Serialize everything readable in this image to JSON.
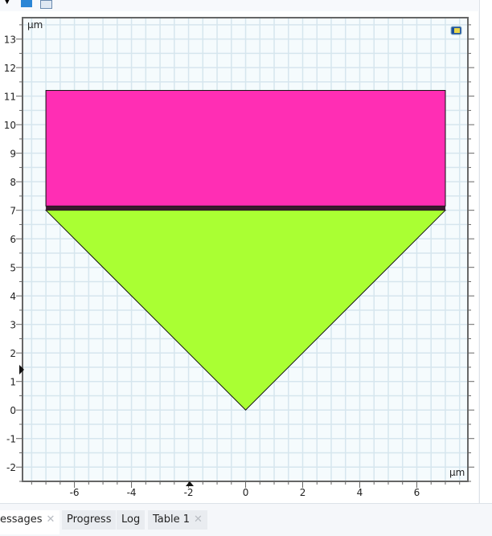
{
  "plot": {
    "unit_x": "µm",
    "unit_y": "µm",
    "x_ticks": [
      -6,
      -4,
      -2,
      0,
      2,
      4,
      6
    ],
    "y_ticks": [
      -2,
      -1,
      0,
      1,
      2,
      3,
      4,
      5,
      6,
      7,
      8,
      9,
      10,
      11,
      12,
      13
    ],
    "x_range": [
      -7.82,
      7.79
    ],
    "y_range": [
      -2.5,
      13.75
    ],
    "grid": true,
    "geometry": {
      "rectangle": {
        "x": [
          -7,
          7
        ],
        "y": [
          7.15,
          11.2
        ],
        "color": "#ff2eb4"
      },
      "interface_layer": {
        "x": [
          -7,
          7
        ],
        "y": [
          7.0,
          7.15
        ],
        "color": "#3a1a2e"
      },
      "triangle": {
        "points": [
          [
            -7,
            7
          ],
          [
            7,
            7
          ],
          [
            0,
            0
          ]
        ],
        "color": "#aaff33"
      }
    }
  },
  "tabs": [
    {
      "label": "essages",
      "closable": true
    },
    {
      "label": "Progress",
      "closable": false
    },
    {
      "label": "Log",
      "closable": false
    },
    {
      "label": "Table 1",
      "closable": true
    }
  ]
}
